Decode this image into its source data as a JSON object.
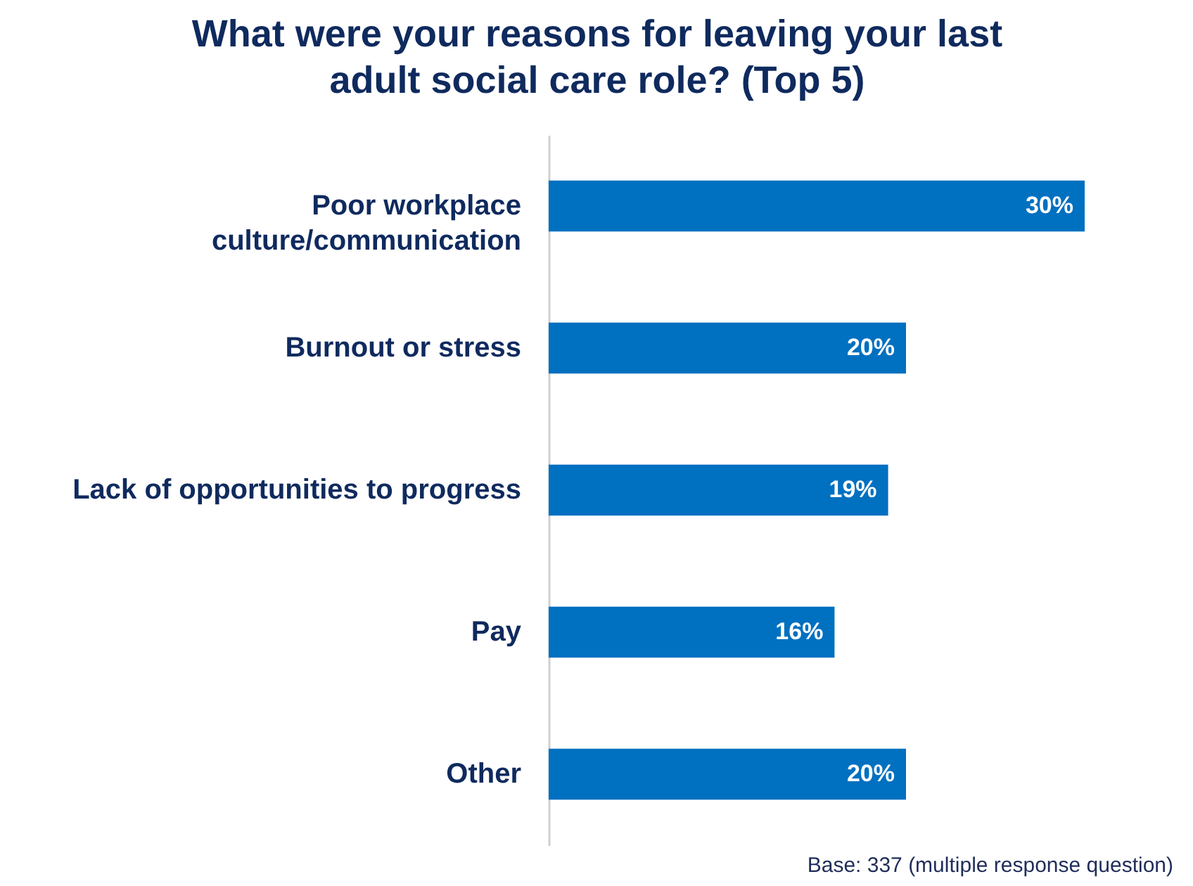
{
  "chart_data": {
    "type": "bar",
    "orientation": "horizontal",
    "title": "What were your reasons for leaving your last\nadult social care role? (Top 5)",
    "categories": [
      "Poor workplace\nculture/communication",
      "Burnout or stress",
      "Lack of opportunities to progress",
      "Pay",
      "Other"
    ],
    "values": [
      30,
      20,
      19,
      16,
      20
    ],
    "value_labels": [
      "30%",
      "20%",
      "19%",
      "16%",
      "20%"
    ],
    "color": "#0070c0",
    "annotations": [
      "Base: 337 (multiple response question)"
    ]
  }
}
